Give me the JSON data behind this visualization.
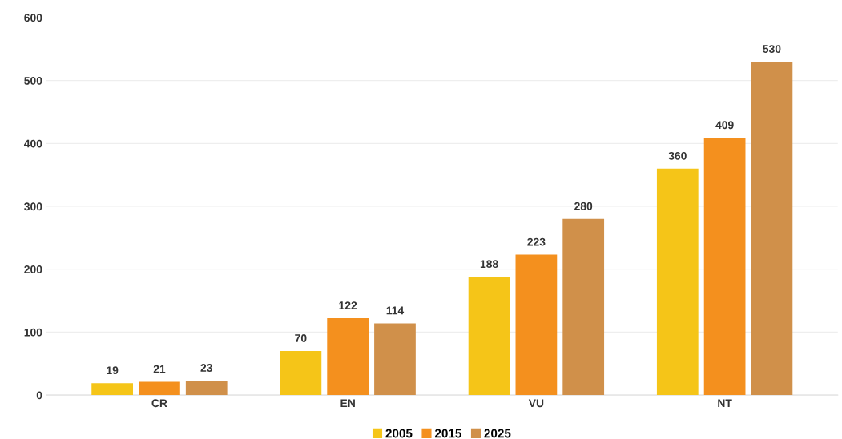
{
  "chart_data": {
    "type": "bar",
    "categories": [
      "CR",
      "EN",
      "VU",
      "NT"
    ],
    "series": [
      {
        "name": "2005",
        "color": "#f5c518",
        "values": [
          19,
          70,
          188,
          360
        ]
      },
      {
        "name": "2015",
        "color": "#f4901e",
        "values": [
          21,
          122,
          223,
          409
        ]
      },
      {
        "name": "2025",
        "color": "#d0904a",
        "values": [
          23,
          114,
          280,
          530
        ]
      }
    ],
    "ylim": [
      0,
      600
    ],
    "yticks": [
      0,
      100,
      200,
      300,
      400,
      500,
      600
    ],
    "grid": "y",
    "legend": "bottom",
    "data_labels": true
  }
}
